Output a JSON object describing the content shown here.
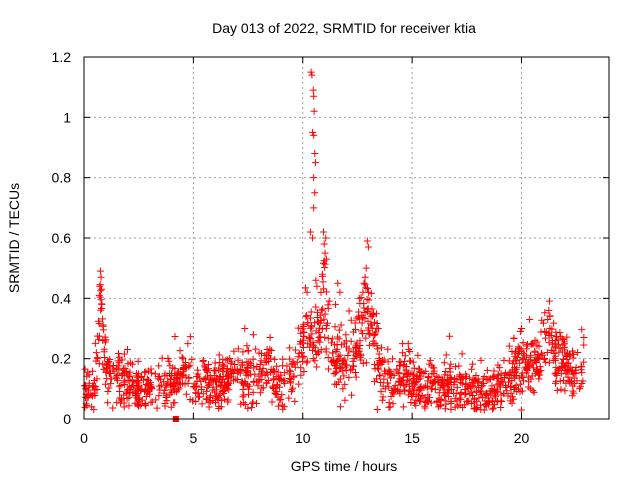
{
  "chart_data": {
    "type": "scatter",
    "title": "Day 013 of 2022, SRMTID for receiver ktia",
    "xlabel": "GPS time / hours",
    "ylabel": "SRMTID / TECUs",
    "xlim": [
      0,
      24
    ],
    "ylim": [
      0,
      1.2
    ],
    "xticks": [
      0,
      5,
      10,
      15,
      20
    ],
    "xtick_labels": [
      "0",
      "5",
      "10",
      "15",
      "20"
    ],
    "yticks": [
      0,
      0.2,
      0.4,
      0.6,
      0.8,
      1.0,
      1.2
    ],
    "ytick_labels": [
      "0",
      "0.2",
      "0.4",
      "0.6",
      "0.8",
      "1",
      "1.2"
    ],
    "grid": true,
    "marker": "+",
    "color": "#ff0000",
    "series": [
      {
        "name": "SRMTID",
        "profile": [
          [
            0.0,
            0.12
          ],
          [
            0.3,
            0.11
          ],
          [
            0.5,
            0.09
          ],
          [
            0.65,
            0.25
          ],
          [
            0.75,
            0.4
          ],
          [
            0.85,
            0.3
          ],
          [
            1.0,
            0.15
          ],
          [
            1.5,
            0.15
          ],
          [
            2.0,
            0.13
          ],
          [
            2.5,
            0.1
          ],
          [
            3.0,
            0.11
          ],
          [
            3.5,
            0.12
          ],
          [
            4.0,
            0.12
          ],
          [
            4.5,
            0.15
          ],
          [
            4.8,
            0.17
          ],
          [
            5.0,
            0.1
          ],
          [
            6.0,
            0.12
          ],
          [
            6.5,
            0.12
          ],
          [
            7.0,
            0.16
          ],
          [
            7.5,
            0.12
          ],
          [
            8.0,
            0.14
          ],
          [
            8.5,
            0.16
          ],
          [
            9.0,
            0.12
          ],
          [
            9.5,
            0.15
          ],
          [
            9.9,
            0.2
          ],
          [
            10.2,
            0.3
          ],
          [
            10.6,
            0.25
          ],
          [
            11.0,
            0.4
          ],
          [
            11.4,
            0.2
          ],
          [
            11.8,
            0.18
          ],
          [
            12.3,
            0.22
          ],
          [
            12.7,
            0.3
          ],
          [
            13.0,
            0.35
          ],
          [
            13.3,
            0.25
          ],
          [
            13.7,
            0.15
          ],
          [
            14.0,
            0.1
          ],
          [
            14.5,
            0.13
          ],
          [
            14.8,
            0.17
          ],
          [
            15.0,
            0.12
          ],
          [
            15.5,
            0.1
          ],
          [
            16.0,
            0.11
          ],
          [
            17.0,
            0.11
          ],
          [
            17.5,
            0.1
          ],
          [
            18.0,
            0.1
          ],
          [
            18.5,
            0.09
          ],
          [
            19.0,
            0.11
          ],
          [
            19.5,
            0.12
          ],
          [
            19.9,
            0.2
          ],
          [
            20.5,
            0.17
          ],
          [
            21.0,
            0.22
          ],
          [
            21.3,
            0.25
          ],
          [
            21.7,
            0.2
          ],
          [
            22.0,
            0.18
          ],
          [
            22.5,
            0.16
          ],
          [
            22.85,
            0.18
          ]
        ],
        "peaks": [
          [
            10.38,
            1.15
          ],
          [
            10.42,
            1.14
          ],
          [
            10.48,
            1.09
          ],
          [
            10.5,
            1.07
          ],
          [
            10.52,
            1.02
          ],
          [
            10.45,
            0.95
          ],
          [
            10.5,
            0.94
          ],
          [
            10.55,
            0.88
          ],
          [
            10.58,
            0.85
          ],
          [
            10.5,
            0.8
          ],
          [
            10.55,
            0.75
          ],
          [
            10.5,
            0.7
          ],
          [
            10.35,
            0.62
          ],
          [
            10.45,
            0.6
          ],
          [
            10.95,
            0.62
          ],
          [
            11.05,
            0.6
          ],
          [
            10.98,
            0.58
          ],
          [
            11.02,
            0.55
          ],
          [
            11.08,
            0.53
          ],
          [
            10.9,
            0.48
          ],
          [
            10.6,
            0.46
          ],
          [
            10.65,
            0.44
          ],
          [
            10.2,
            0.42
          ],
          [
            12.95,
            0.59
          ],
          [
            13.0,
            0.57
          ],
          [
            12.9,
            0.5
          ],
          [
            12.85,
            0.47
          ],
          [
            12.8,
            0.45
          ],
          [
            12.75,
            0.42
          ],
          [
            12.6,
            0.4
          ],
          [
            11.6,
            0.45
          ],
          [
            11.7,
            0.42
          ],
          [
            11.5,
            0.38
          ],
          [
            0.75,
            0.49
          ],
          [
            0.78,
            0.47
          ],
          [
            0.72,
            0.44
          ],
          [
            0.8,
            0.43
          ],
          [
            0.7,
            0.41
          ],
          [
            0.82,
            0.38
          ],
          [
            21.25,
            0.36
          ],
          [
            21.3,
            0.34
          ],
          [
            21.2,
            0.33
          ],
          [
            7.35,
            0.3
          ],
          [
            4.75,
            0.25
          ],
          [
            20.0,
            0.3
          ],
          [
            19.95,
            0.29
          ],
          [
            22.85,
            0.27
          ],
          [
            0.1,
            0.05
          ],
          [
            0.35,
            0.04
          ],
          [
            14.6,
            0.04
          ],
          [
            18.3,
            0.03
          ],
          [
            20.0,
            0.03
          ],
          [
            5.4,
            0.05
          ],
          [
            16.2,
            0.04
          ]
        ],
        "num_points": 1550,
        "noise_sd": 0.03
      }
    ],
    "extra_marks": [
      {
        "marker": "square",
        "x": 4.2,
        "y": 0.0
      }
    ]
  }
}
